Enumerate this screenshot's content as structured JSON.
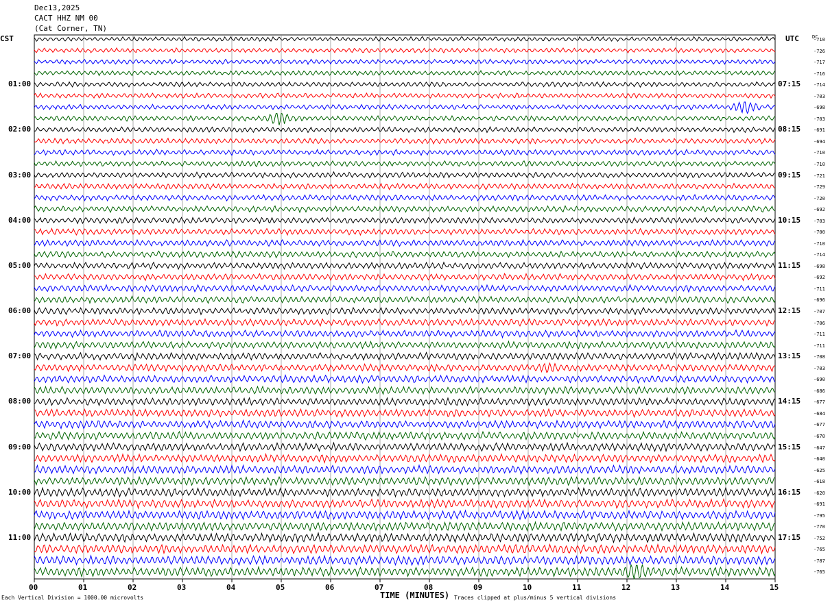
{
  "header": {
    "date": "Dec13,2025",
    "station": "CACT HHZ NM 00",
    "location": "(Cat Corner, TN)"
  },
  "left_zone": "CST",
  "right_zone": "UTC",
  "dc_header": "DC",
  "left_hour_labels": [
    "01:00",
    "02:00",
    "03:00",
    "04:00",
    "05:00",
    "06:00",
    "07:00",
    "08:00",
    "09:00",
    "10:00",
    "11:00"
  ],
  "right_hour_labels": [
    "07:15",
    "08:15",
    "09:15",
    "10:15",
    "11:15",
    "12:15",
    "13:15",
    "14:15",
    "15:15",
    "16:15",
    "17:15"
  ],
  "dc_offsets": [
    "-710",
    "-726",
    "-717",
    "-716",
    "-714",
    "-703",
    "-698",
    "-703",
    "-691",
    "-694",
    "-710",
    "-710",
    "-721",
    "-729",
    "-720",
    "-692",
    "-703",
    "-700",
    "-710",
    "-714",
    "-698",
    "-692",
    "-711",
    "-696",
    "-707",
    "-706",
    "-711",
    "-711",
    "-708",
    "-703",
    "-690",
    "-686",
    "-677",
    "-684",
    "-677",
    "-670",
    "-647",
    "-640",
    "-625",
    "-618",
    "-620",
    "-691",
    "-795",
    "-770",
    "-752",
    "-765",
    "-787",
    "-765"
  ],
  "trace_colors": [
    "#000000",
    "#ff0000",
    "#0000ff",
    "#006400"
  ],
  "x_tick_labels": [
    "00",
    "01",
    "02",
    "03",
    "04",
    "05",
    "06",
    "07",
    "08",
    "09",
    "10",
    "11",
    "12",
    "13",
    "14",
    "15"
  ],
  "x_axis_title": "TIME (MINUTES)",
  "footer_left": "Each Vertical Division = 1000.00 microvolts",
  "footer_right": "Traces clipped at plus/minus 5 vertical divisions",
  "chart_data": {
    "type": "line",
    "description_units": "helicorder traces, 15-minute lines",
    "trace_count": 48,
    "minutes_per_trace": 15,
    "x_range": [
      0,
      15
    ],
    "grid": true,
    "events": [
      {
        "trace": 6,
        "minute": 14.4,
        "amplitude": "large"
      },
      {
        "trace": 7,
        "minute": 4.95,
        "amplitude": "large"
      },
      {
        "trace": 29,
        "minute": 10.4,
        "amplitude": "medium"
      },
      {
        "trace": 47,
        "minute": 12.2,
        "amplitude": "large"
      }
    ]
  }
}
